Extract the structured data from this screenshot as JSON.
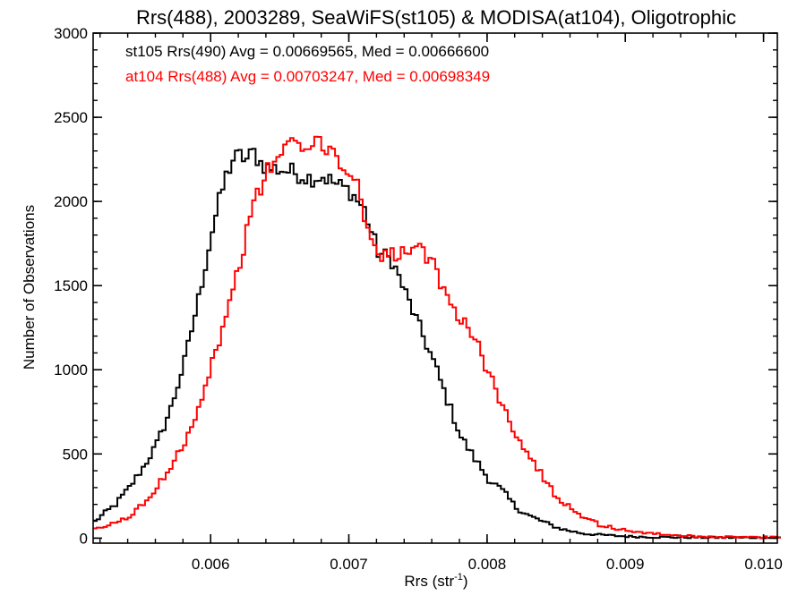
{
  "chart_data": {
    "type": "line",
    "title": "Rrs(488), 2003289, SeaWiFS(st105) & MODISA(at104), Oligotrophic",
    "xlabel": {
      "main": "Rrs (str",
      "sup": "-1",
      "close": ")"
    },
    "ylabel": "Number of Observations",
    "xlim": [
      0.00515,
      0.0101
    ],
    "ylim": [
      -30,
      3000
    ],
    "xticks": [
      0.006,
      0.007,
      0.008,
      0.009,
      0.01
    ],
    "xtick_labels": [
      "0.006",
      "0.007",
      "0.008",
      "0.009",
      "0.010"
    ],
    "yticks": [
      0,
      500,
      1000,
      1500,
      2000,
      2500,
      3000
    ],
    "ytick_labels": [
      "0",
      "500",
      "1000",
      "1500",
      "2000",
      "2500",
      "3000"
    ],
    "grid": false,
    "annotations": [
      {
        "text": "st105 Rrs(490) Avg = 0.00669565, Med = 0.00666600",
        "color": "#000000"
      },
      {
        "text": "at104 Rrs(488) Avg = 0.00703247, Med = 0.00698349",
        "color": "#ff0000"
      }
    ],
    "series": [
      {
        "color": "#000000",
        "style": "step",
        "x": [
          0.00515,
          0.0053,
          0.0054,
          0.0055,
          0.0056,
          0.0057,
          0.0058,
          0.0059,
          0.006,
          0.00605,
          0.0061,
          0.00615,
          0.0062,
          0.00625,
          0.0063,
          0.00635,
          0.0064,
          0.0065,
          0.0066,
          0.0067,
          0.0068,
          0.0069,
          0.007,
          0.0071,
          0.00715,
          0.0072,
          0.0073,
          0.0074,
          0.0075,
          0.0076,
          0.0077,
          0.0078,
          0.0079,
          0.008,
          0.0081,
          0.0082,
          0.0083,
          0.0084,
          0.0085,
          0.0086,
          0.0087,
          0.0088,
          0.0089,
          0.009,
          0.0091,
          0.0092,
          0.0093,
          0.0095,
          0.0097,
          0.0099,
          0.0101
        ],
        "y": [
          100,
          200,
          300,
          420,
          560,
          770,
          1050,
          1420,
          1830,
          2000,
          2150,
          2250,
          2270,
          2250,
          2290,
          2230,
          2200,
          2190,
          2170,
          2140,
          2150,
          2100,
          2060,
          1950,
          1820,
          1700,
          1650,
          1450,
          1250,
          1050,
          820,
          600,
          470,
          350,
          280,
          180,
          130,
          95,
          60,
          40,
          25,
          20,
          15,
          10,
          8,
          6,
          5,
          4,
          3,
          2,
          2
        ]
      },
      {
        "color": "#ff0000",
        "style": "step",
        "x": [
          0.00515,
          0.0053,
          0.0054,
          0.0055,
          0.0056,
          0.0057,
          0.0058,
          0.0059,
          0.006,
          0.0061,
          0.0062,
          0.0063,
          0.0064,
          0.0065,
          0.0066,
          0.0067,
          0.0068,
          0.0069,
          0.007,
          0.00705,
          0.0071,
          0.0072,
          0.0073,
          0.0074,
          0.0075,
          0.0076,
          0.0077,
          0.0078,
          0.0079,
          0.008,
          0.0081,
          0.0082,
          0.0083,
          0.0084,
          0.0085,
          0.0086,
          0.0087,
          0.0088,
          0.0089,
          0.009,
          0.0091,
          0.0092,
          0.0093,
          0.0094,
          0.0095,
          0.0097,
          0.0099,
          0.0101
        ],
        "y": [
          50,
          90,
          130,
          200,
          300,
          430,
          580,
          770,
          1050,
          1300,
          1650,
          1980,
          2180,
          2300,
          2340,
          2300,
          2360,
          2260,
          2160,
          2100,
          1900,
          1700,
          1680,
          1700,
          1700,
          1620,
          1420,
          1310,
          1180,
          980,
          780,
          620,
          480,
          350,
          240,
          180,
          120,
          80,
          60,
          45,
          35,
          25,
          20,
          15,
          10,
          8,
          5,
          4
        ]
      }
    ]
  }
}
